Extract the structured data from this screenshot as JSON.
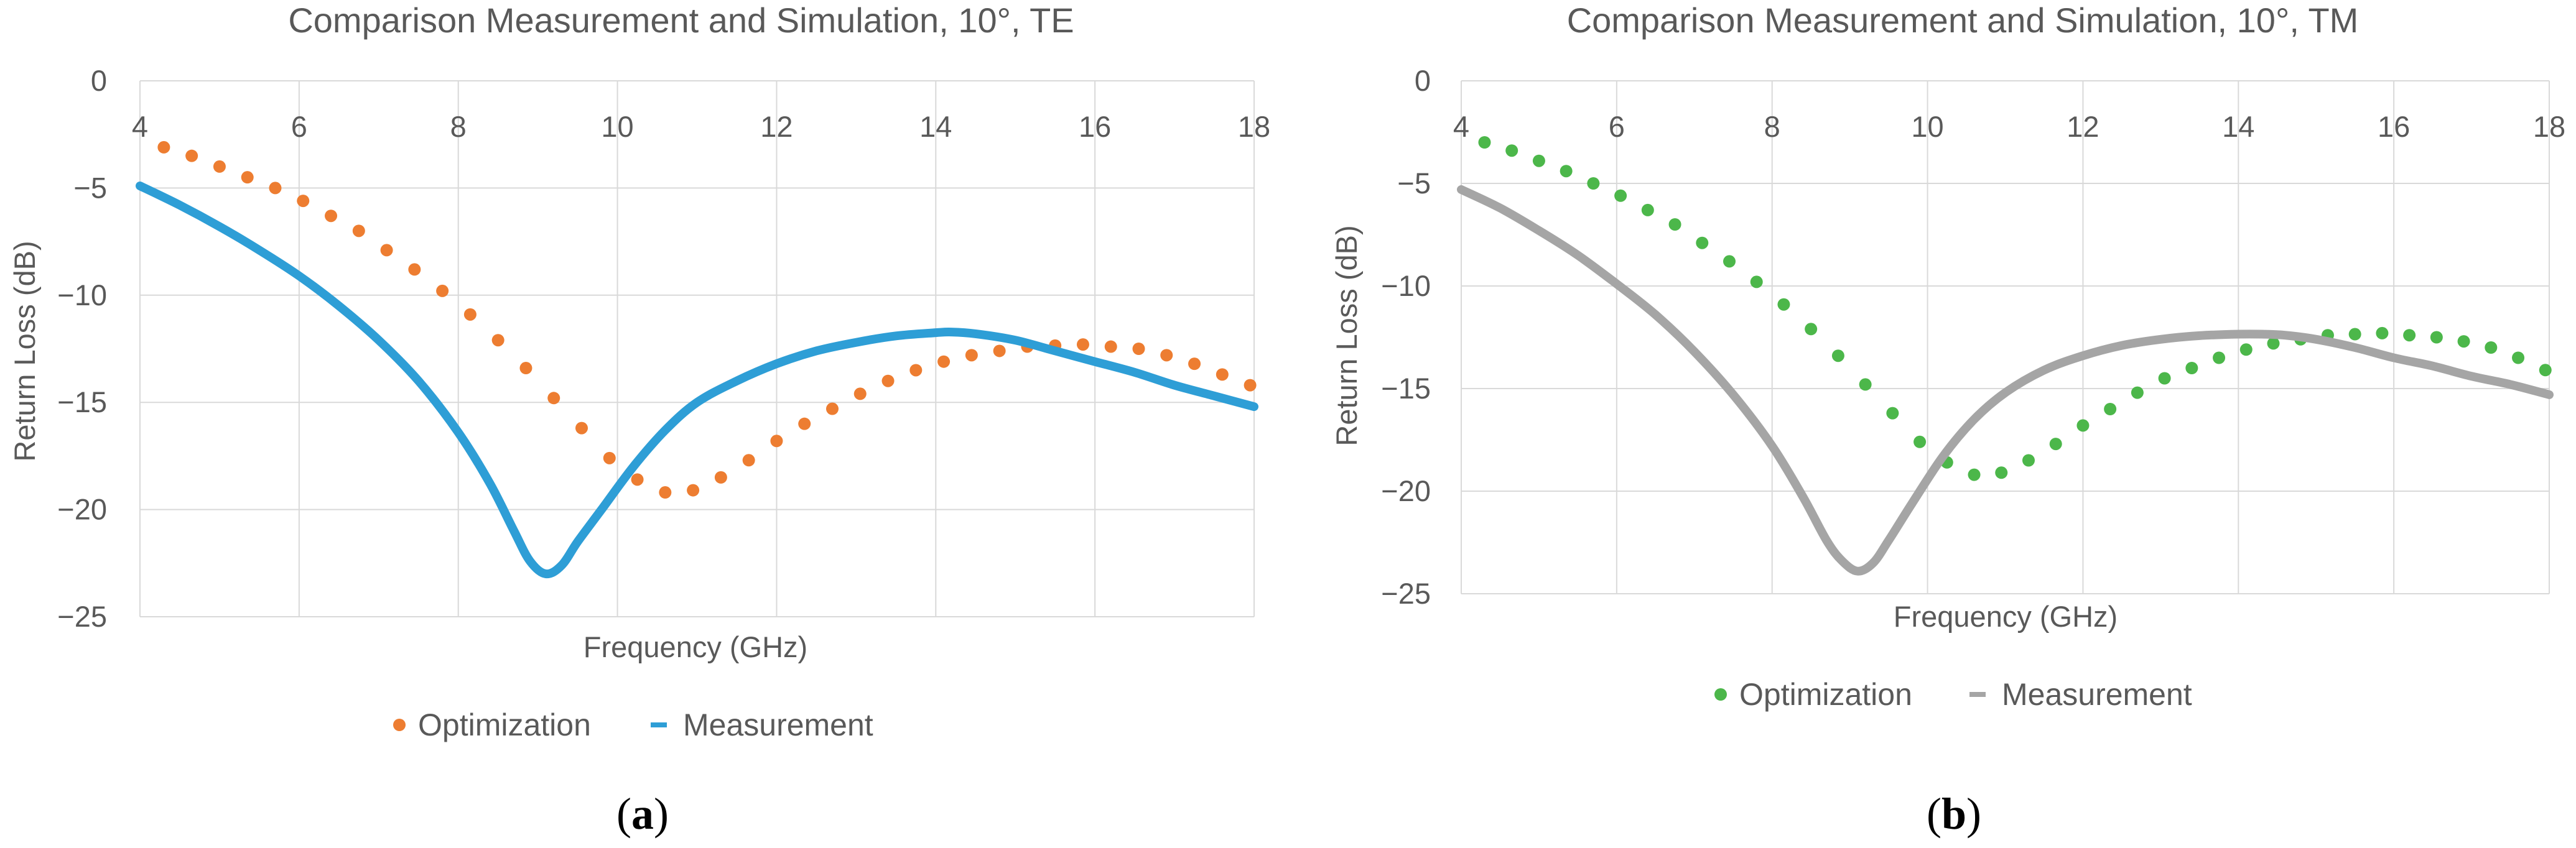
{
  "chart_data": [
    {
      "type": "scatter",
      "title": "Comparison Measurement and Simulation, 10°, TE",
      "xlabel": "Frequency (GHz)",
      "ylabel": "Return Loss (dB)",
      "xlim": [
        4,
        18
      ],
      "ylim": [
        -25,
        0
      ],
      "x_ticks": [
        4,
        6,
        8,
        10,
        12,
        14,
        16,
        18
      ],
      "y_ticks": [
        0,
        -5,
        -10,
        -15,
        -20,
        -25
      ],
      "x_tick_labels": [
        "4",
        "6",
        "8",
        "10",
        "12",
        "14",
        "16",
        "18"
      ],
      "y_tick_labels": [
        "0",
        "−5",
        "−10",
        "−15",
        "−20",
        "−25"
      ],
      "x_axis_position": "top",
      "grid": true,
      "legend_position": "bottom",
      "panel_label": "a",
      "series": [
        {
          "name": "Optimization",
          "style": "markers",
          "color": "#ED7D31",
          "x": [
            4.3,
            4.65,
            5.0,
            5.35,
            5.7,
            6.05,
            6.4,
            6.75,
            7.1,
            7.45,
            7.8,
            8.15,
            8.5,
            8.85,
            9.2,
            9.55,
            9.9,
            10.25,
            10.6,
            10.95,
            11.3,
            11.65,
            12.0,
            12.35,
            12.7,
            13.05,
            13.4,
            13.75,
            14.1,
            14.45,
            14.8,
            15.15,
            15.5,
            15.85,
            16.2,
            16.55,
            16.9,
            17.25,
            17.6,
            17.95
          ],
          "y": [
            -3.1,
            -3.5,
            -4.0,
            -4.5,
            -5.0,
            -5.6,
            -6.3,
            -7.0,
            -7.9,
            -8.8,
            -9.8,
            -10.9,
            -12.1,
            -13.4,
            -14.8,
            -16.2,
            -17.6,
            -18.6,
            -19.2,
            -19.1,
            -18.5,
            -17.7,
            -16.8,
            -16.0,
            -15.3,
            -14.6,
            -14.0,
            -13.5,
            -13.1,
            -12.8,
            -12.6,
            -12.4,
            -12.35,
            -12.3,
            -12.4,
            -12.5,
            -12.8,
            -13.2,
            -13.7,
            -14.2
          ]
        },
        {
          "name": "Measurement",
          "style": "line",
          "color": "#2E9ED6",
          "x": [
            4.0,
            4.5,
            5.0,
            5.5,
            6.0,
            6.5,
            7.0,
            7.5,
            8.0,
            8.4,
            8.7,
            8.9,
            9.1,
            9.3,
            9.5,
            9.8,
            10.2,
            10.6,
            11.0,
            11.5,
            12.0,
            12.5,
            13.0,
            13.5,
            14.0,
            14.2,
            14.5,
            15.0,
            15.5,
            16.0,
            16.5,
            17.0,
            17.5,
            18.0
          ],
          "y": [
            -4.9,
            -5.8,
            -6.8,
            -7.9,
            -9.1,
            -10.5,
            -12.1,
            -14.0,
            -16.4,
            -18.8,
            -21.0,
            -22.4,
            -23.0,
            -22.6,
            -21.5,
            -20.0,
            -18.0,
            -16.3,
            -15.0,
            -14.0,
            -13.2,
            -12.6,
            -12.2,
            -11.9,
            -11.75,
            -11.72,
            -11.8,
            -12.1,
            -12.6,
            -13.1,
            -13.6,
            -14.2,
            -14.7,
            -15.2
          ]
        }
      ]
    },
    {
      "type": "scatter",
      "title": "Comparison Measurement and Simulation, 10°, TM",
      "xlabel": "Frequency (GHz)",
      "ylabel": "Return Loss (dB)",
      "xlim": [
        4,
        18
      ],
      "ylim": [
        -25,
        0
      ],
      "x_ticks": [
        4,
        6,
        8,
        10,
        12,
        14,
        16,
        18
      ],
      "y_ticks": [
        0,
        -5,
        -10,
        -15,
        -20,
        -25
      ],
      "x_tick_labels": [
        "4",
        "6",
        "8",
        "10",
        "12",
        "14",
        "16",
        "18"
      ],
      "y_tick_labels": [
        "0",
        "−5",
        "−10",
        "−15",
        "−20",
        "−25"
      ],
      "x_axis_position": "top",
      "grid": true,
      "legend_position": "bottom",
      "panel_label": "b",
      "series": [
        {
          "name": "Optimization",
          "style": "markers",
          "color": "#4CB74A",
          "x": [
            4.3,
            4.65,
            5.0,
            5.35,
            5.7,
            6.05,
            6.4,
            6.75,
            7.1,
            7.45,
            7.8,
            8.15,
            8.5,
            8.85,
            9.2,
            9.55,
            9.9,
            10.25,
            10.6,
            10.95,
            11.3,
            11.65,
            12.0,
            12.35,
            12.7,
            13.05,
            13.4,
            13.75,
            14.1,
            14.45,
            14.8,
            15.15,
            15.5,
            15.85,
            16.2,
            16.55,
            16.9,
            17.25,
            17.6,
            17.95
          ],
          "y": [
            -3.0,
            -3.4,
            -3.9,
            -4.4,
            -5.0,
            -5.6,
            -6.3,
            -7.0,
            -7.9,
            -8.8,
            -9.8,
            -10.9,
            -12.1,
            -13.4,
            -14.8,
            -16.2,
            -17.6,
            -18.6,
            -19.2,
            -19.1,
            -18.5,
            -17.7,
            -16.8,
            -16.0,
            -15.2,
            -14.5,
            -14.0,
            -13.5,
            -13.1,
            -12.8,
            -12.6,
            -12.4,
            -12.35,
            -12.3,
            -12.4,
            -12.5,
            -12.7,
            -13.0,
            -13.5,
            -14.1
          ]
        },
        {
          "name": "Measurement",
          "style": "line",
          "color": "#A5A5A5",
          "x": [
            4.0,
            4.5,
            5.0,
            5.5,
            6.0,
            6.5,
            7.0,
            7.5,
            8.0,
            8.4,
            8.7,
            8.9,
            9.1,
            9.3,
            9.5,
            9.8,
            10.2,
            10.6,
            11.0,
            11.5,
            12.0,
            12.5,
            13.0,
            13.5,
            14.0,
            14.3,
            14.6,
            15.0,
            15.5,
            16.0,
            16.5,
            17.0,
            17.5,
            18.0
          ],
          "y": [
            -5.3,
            -6.2,
            -7.3,
            -8.5,
            -9.9,
            -11.4,
            -13.2,
            -15.3,
            -17.8,
            -20.3,
            -22.4,
            -23.4,
            -23.9,
            -23.5,
            -22.4,
            -20.6,
            -18.3,
            -16.5,
            -15.2,
            -14.1,
            -13.4,
            -12.9,
            -12.6,
            -12.42,
            -12.35,
            -12.35,
            -12.4,
            -12.6,
            -13.0,
            -13.5,
            -13.9,
            -14.4,
            -14.8,
            -15.3
          ]
        }
      ]
    }
  ]
}
